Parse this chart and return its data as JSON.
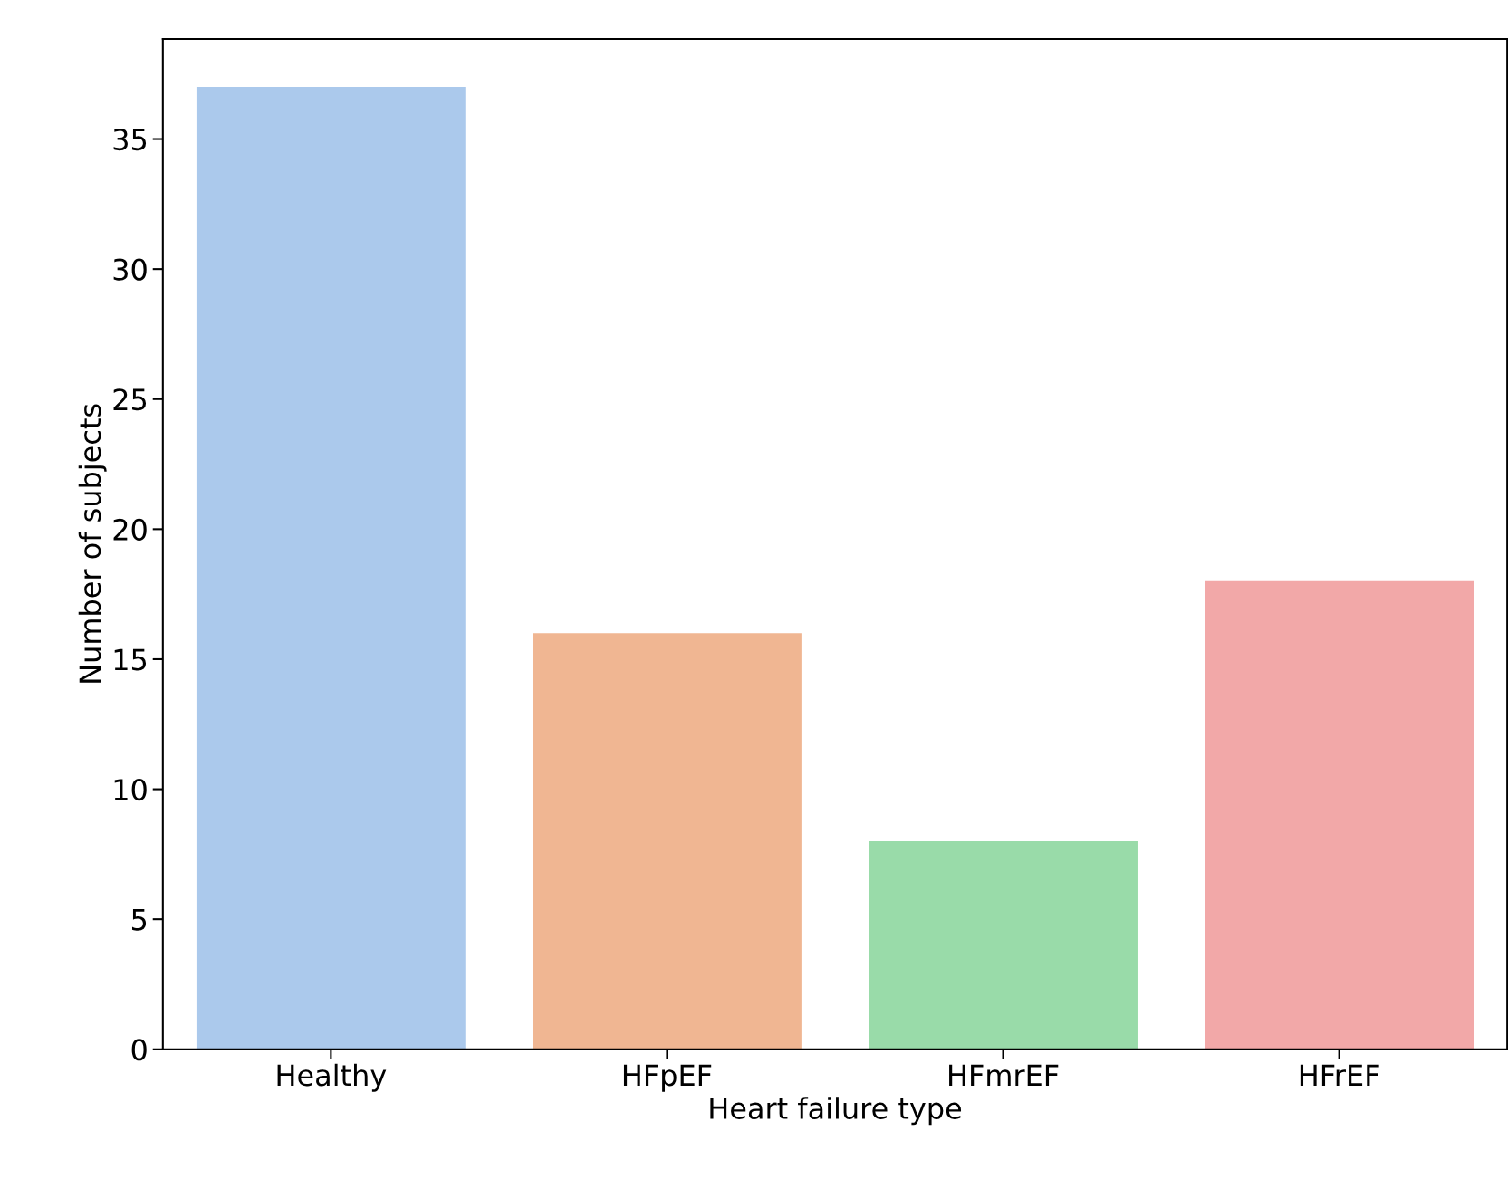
{
  "chart_data": {
    "type": "bar",
    "xlabel": "Heart failure type",
    "ylabel": "Number of subjects",
    "categories": [
      "Healthy",
      "HFpEF",
      "HFmrEF",
      "HFrEF"
    ],
    "values": [
      37,
      16,
      8,
      18
    ],
    "colors": [
      "#abc9ec",
      "#f0b692",
      "#99dba9",
      "#f2a8a8"
    ],
    "ylim": [
      0,
      38.85
    ],
    "yticks": [
      0,
      5,
      10,
      15,
      20,
      25,
      30,
      35
    ],
    "grid": false
  }
}
